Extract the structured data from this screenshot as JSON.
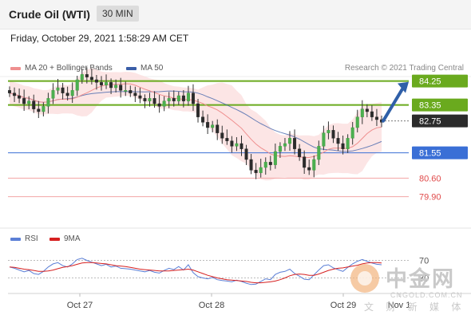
{
  "header": {
    "title": "Crude Oil (WTI)",
    "timeframe": "30 MIN"
  },
  "timestamp": "Friday, October 29, 2021 1:58:29 AM CET",
  "legend": {
    "ma20": {
      "label": "MA 20 + Bollinger Bands",
      "color": "#ef8f8f"
    },
    "ma50": {
      "label": "MA 50",
      "color": "#3a5ea8"
    },
    "credit": "Research © 2021 Trading Central"
  },
  "rsi_legend": {
    "rsi": {
      "label": "RSI",
      "color": "#5b7fd6"
    },
    "ma9": {
      "label": "9MA",
      "color": "#d62020"
    }
  },
  "watermark": {
    "chinese": "中金网",
    "url": "CNGOLD.COM.CN",
    "sub": "文 财 新 媒 体"
  },
  "chart_data": [
    {
      "type": "candlestick",
      "x_labels": [
        "Oct 27",
        "Oct 28",
        "Oct 29",
        "Nov 1"
      ],
      "price_levels": [
        {
          "value": 84.25,
          "label": "84.25",
          "style": "resistance",
          "color": "#6aaa1e"
        },
        {
          "value": 83.35,
          "label": "83.35",
          "style": "resistance",
          "color": "#6aaa1e"
        },
        {
          "value": 82.75,
          "label": "82.75",
          "style": "current",
          "color": "#2b2b2b"
        },
        {
          "value": 81.55,
          "label": "81.55",
          "style": "pivot",
          "color": "#3a6fd6"
        },
        {
          "value": 80.6,
          "label": "80.60",
          "style": "support",
          "color": "#e05050"
        },
        {
          "value": 79.9,
          "label": "79.90",
          "style": "support",
          "color": "#e05050"
        }
      ],
      "close": [
        83.8,
        83.7,
        83.6,
        83.4,
        83.5,
        83.2,
        83.1,
        83.3,
        83.6,
        83.9,
        84.0,
        83.8,
        83.7,
        83.9,
        84.3,
        84.5,
        84.4,
        84.3,
        84.2,
        84.1,
        84.2,
        84.0,
        84.1,
        83.9,
        83.9,
        83.8,
        83.7,
        83.6,
        83.5,
        83.6,
        83.4,
        83.3,
        83.5,
        83.6,
        83.5,
        83.7,
        83.5,
        83.8,
        83.4,
        82.9,
        82.7,
        82.5,
        82.6,
        82.3,
        82.1,
        82.0,
        81.8,
        81.9,
        81.7,
        81.3,
        80.9,
        80.8,
        81.0,
        81.2,
        81.1,
        81.6,
        81.8,
        81.9,
        82.1,
        81.7,
        81.4,
        81.0,
        80.9,
        81.3,
        81.8,
        82.3,
        82.4,
        82.1,
        81.9,
        81.7,
        82.1,
        82.5,
        82.9,
        83.2,
        83.1,
        82.9,
        82.8,
        82.7
      ],
      "ma20_endpoint": 82.1,
      "ma50_endpoint": 81.8,
      "forecast_arrow": {
        "from": 82.75,
        "to": 84.25
      }
    },
    {
      "type": "line",
      "indicator": "RSI",
      "levels": [
        70,
        30
      ],
      "level_labels": [
        "70",
        "30"
      ],
      "series": [
        {
          "name": "RSI",
          "values": [
            55,
            52,
            48,
            44,
            47,
            40,
            38,
            45,
            55,
            62,
            65,
            58,
            55,
            62,
            72,
            75,
            70,
            66,
            62,
            58,
            61,
            55,
            57,
            52,
            51,
            50,
            48,
            46,
            44,
            47,
            43,
            41,
            47,
            52,
            49,
            56,
            48,
            60,
            42,
            33,
            30,
            28,
            31,
            26,
            24,
            23,
            21,
            25,
            22,
            18,
            15,
            16,
            22,
            28,
            26,
            38,
            43,
            45,
            50,
            40,
            34,
            27,
            26,
            37,
            48,
            58,
            60,
            53,
            49,
            45,
            54,
            62,
            68,
            72,
            68,
            64,
            61,
            60
          ]
        },
        {
          "name": "9MA",
          "values": [
            55,
            54,
            52,
            50,
            49,
            47,
            45,
            45,
            46,
            48,
            51,
            54,
            56,
            58,
            61,
            64,
            65,
            65,
            64,
            63,
            62,
            60,
            58,
            57,
            56,
            54,
            52,
            50,
            49,
            48,
            47,
            46,
            46,
            46,
            47,
            48,
            49,
            50,
            48,
            44,
            40,
            36,
            33,
            30,
            28,
            26,
            25,
            24,
            23,
            22,
            20,
            19,
            19,
            20,
            21,
            23,
            26,
            30,
            35,
            38,
            39,
            38,
            36,
            36,
            39,
            43,
            47,
            50,
            52,
            53,
            55,
            57,
            59,
            62,
            64,
            65,
            65,
            64
          ]
        }
      ]
    }
  ]
}
